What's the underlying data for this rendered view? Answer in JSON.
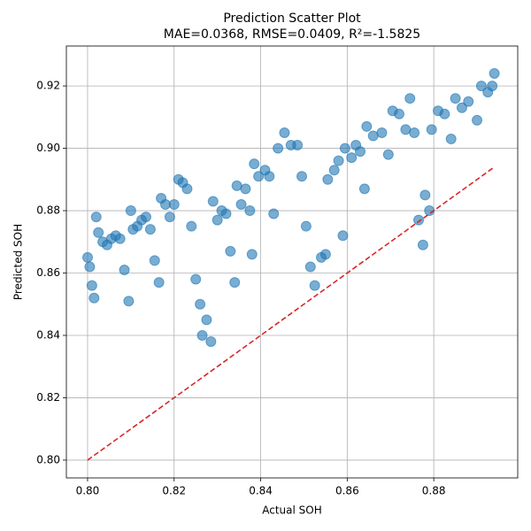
{
  "chart_data": {
    "type": "scatter",
    "title": "Prediction Scatter Plot",
    "subtitle": "MAE=0.0368, RMSE=0.0409, R²=-1.5825",
    "x_label": "Actual SOH",
    "y_label": "Predicted SOH",
    "xlim": [
      0.7951,
      0.8994
    ],
    "ylim": [
      0.7943,
      0.9328
    ],
    "xticks": [
      {
        "value": 0.8,
        "label": "0.80"
      },
      0.82,
      0.84,
      0.86,
      0.88
    ],
    "yticks": [
      {
        "value": 0.8,
        "label": "0.80"
      },
      0.82,
      0.84,
      0.86,
      0.88,
      {
        "value": 0.9,
        "label": "0.90"
      },
      0.92
    ],
    "grid": true,
    "series": [
      {
        "color": "#1f77b4",
        "x": [
          0.8,
          0.8005,
          0.801,
          0.8015,
          0.802,
          0.8025,
          0.8035,
          0.8045,
          0.8055,
          0.8065,
          0.8075,
          0.8085,
          0.8095,
          0.81,
          0.8105,
          0.8115,
          0.8125,
          0.8135,
          0.8145,
          0.8155,
          0.8165,
          0.817,
          0.818,
          0.819,
          0.82,
          0.821,
          0.822,
          0.823,
          0.824,
          0.825,
          0.826,
          0.8265,
          0.8275,
          0.8285,
          0.829,
          0.83,
          0.831,
          0.832,
          0.833,
          0.834,
          0.8345,
          0.8355,
          0.8365,
          0.8375,
          0.838,
          0.8385,
          0.8395,
          0.841,
          0.842,
          0.843,
          0.844,
          0.8455,
          0.847,
          0.8485,
          0.8495,
          0.8505,
          0.8515,
          0.8525,
          0.854,
          0.855,
          0.8555,
          0.857,
          0.858,
          0.859,
          0.8595,
          0.861,
          0.862,
          0.863,
          0.864,
          0.8645,
          0.866,
          0.868,
          0.8695,
          0.8705,
          0.872,
          0.8735,
          0.8745,
          0.8755,
          0.8765,
          0.8775,
          0.878,
          0.879,
          0.8795,
          0.881,
          0.8825,
          0.884,
          0.885,
          0.8865,
          0.888,
          0.89,
          0.891,
          0.8925,
          0.8935,
          0.894
        ],
        "values": [
          0.865,
          0.862,
          0.856,
          0.852,
          0.878,
          0.873,
          0.87,
          0.869,
          0.871,
          0.872,
          0.871,
          0.861,
          0.851,
          0.88,
          0.874,
          0.875,
          0.877,
          0.878,
          0.874,
          0.864,
          0.857,
          0.884,
          0.882,
          0.878,
          0.882,
          0.89,
          0.889,
          0.887,
          0.875,
          0.858,
          0.85,
          0.84,
          0.845,
          0.838,
          0.883,
          0.877,
          0.88,
          0.879,
          0.867,
          0.857,
          0.888,
          0.882,
          0.887,
          0.88,
          0.866,
          0.895,
          0.891,
          0.893,
          0.891,
          0.879,
          0.9,
          0.905,
          0.901,
          0.901,
          0.891,
          0.875,
          0.862,
          0.856,
          0.865,
          0.866,
          0.89,
          0.893,
          0.896,
          0.872,
          0.9,
          0.897,
          0.901,
          0.899,
          0.887,
          0.907,
          0.904,
          0.905,
          0.898,
          0.912,
          0.911,
          0.906,
          0.916,
          0.905,
          0.877,
          0.869,
          0.885,
          0.88,
          0.906,
          0.912,
          0.911,
          0.903,
          0.916,
          0.913,
          0.915,
          0.909,
          0.92,
          0.918,
          0.92,
          0.924
        ]
      }
    ],
    "reference_line": {
      "color": "#d62728",
      "x": [
        0.8,
        0.894
      ],
      "values": [
        0.8,
        0.894
      ]
    }
  }
}
